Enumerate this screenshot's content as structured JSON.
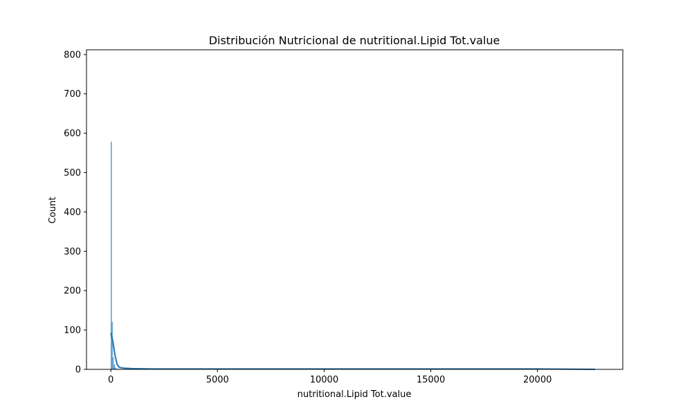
{
  "chart_data": {
    "type": "histogram",
    "title": "Distribución Nutricional de nutritional.Lipid Tot.value",
    "xlabel": "nutritional.Lipid Tot.value",
    "ylabel": "Count",
    "xlim": [
      -1140,
      24000
    ],
    "ylim": [
      0,
      812
    ],
    "x_ticks": [
      0,
      5000,
      10000,
      15000,
      20000
    ],
    "y_ticks": [
      0,
      100,
      200,
      300,
      400,
      500,
      600,
      700,
      800
    ],
    "grid": false,
    "legend": "none",
    "bar_color": "#1f77b4",
    "kde_color": "#1f77b4",
    "bins": [
      {
        "x": 0,
        "count": 578
      },
      {
        "x": 45,
        "count": 120
      },
      {
        "x": 90,
        "count": 30
      },
      {
        "x": 135,
        "count": 12
      },
      {
        "x": 180,
        "count": 5
      },
      {
        "x": 225,
        "count": 2
      },
      {
        "x": 270,
        "count": 1
      }
    ],
    "kde": [
      {
        "x": 0,
        "y": 93
      },
      {
        "x": 100,
        "y": 70
      },
      {
        "x": 200,
        "y": 35
      },
      {
        "x": 300,
        "y": 12
      },
      {
        "x": 400,
        "y": 5
      },
      {
        "x": 600,
        "y": 3
      },
      {
        "x": 1000,
        "y": 2
      },
      {
        "x": 2000,
        "y": 1
      },
      {
        "x": 5000,
        "y": 1
      },
      {
        "x": 10000,
        "y": 1
      },
      {
        "x": 15000,
        "y": 1
      },
      {
        "x": 20000,
        "y": 1
      },
      {
        "x": 22700,
        "y": 0
      }
    ],
    "bin_width": 45,
    "x_max_data": 22700
  }
}
